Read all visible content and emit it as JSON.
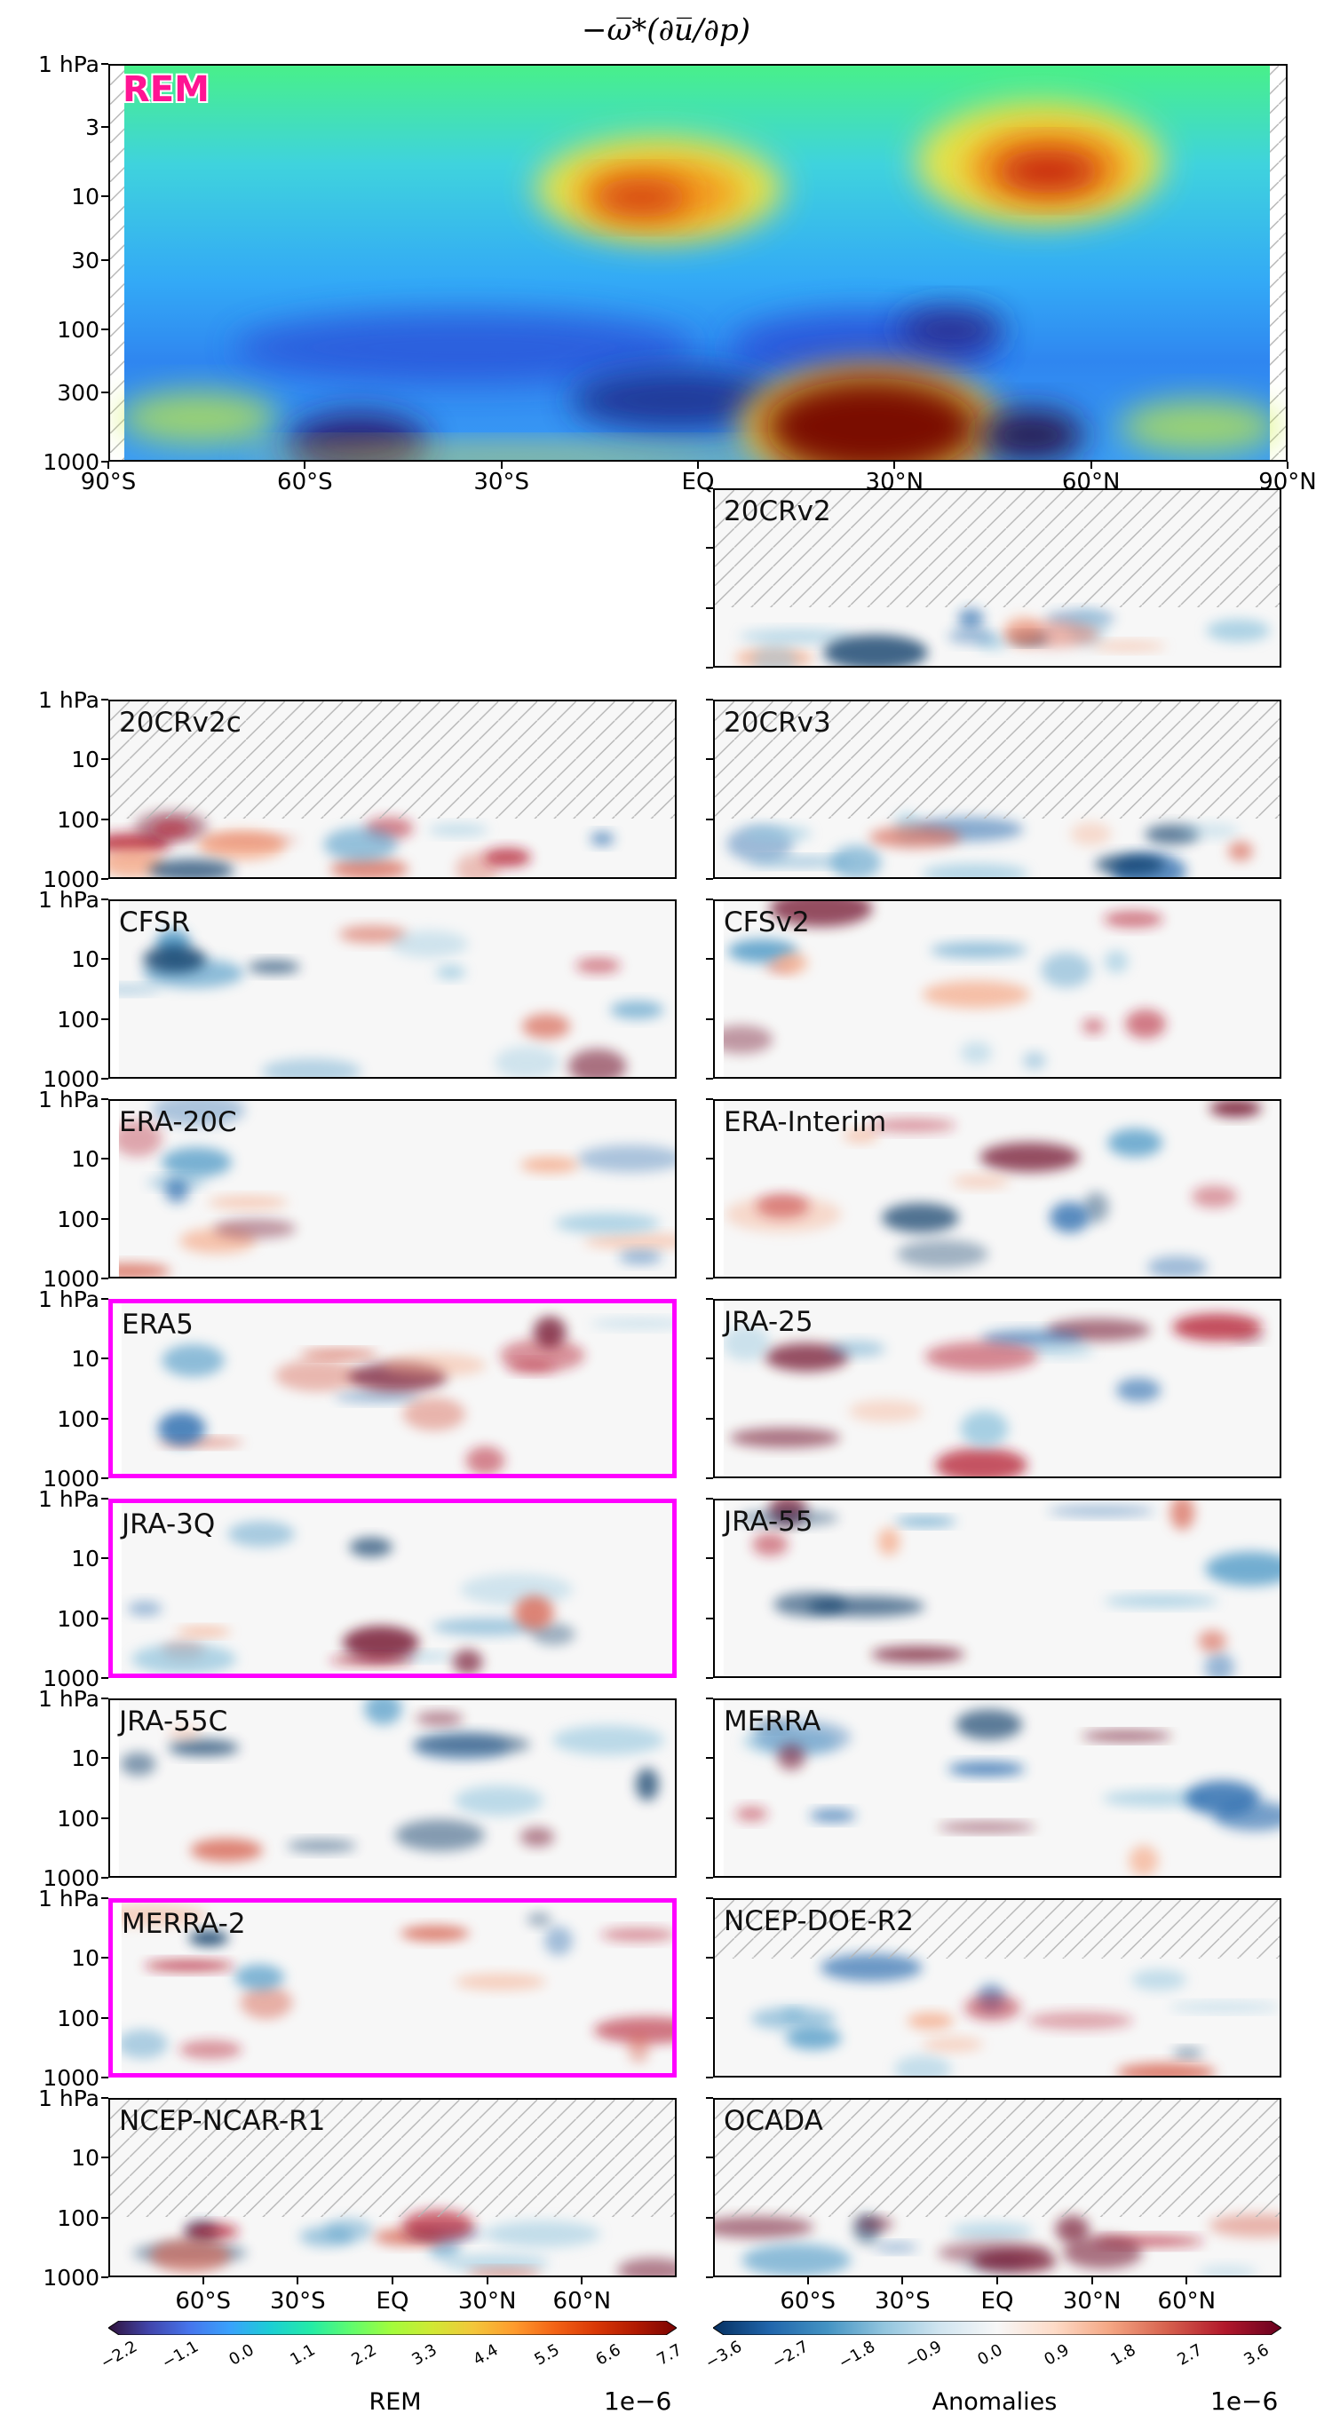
{
  "chart_data": {
    "type": "heatmap",
    "title": "−ω̅*(∂u̅/∂p)",
    "x_axis": {
      "range": [
        "90°S",
        "90°N"
      ],
      "top_panel_tick_labels": [
        "90°S",
        "60°S",
        "30°S",
        "EQ",
        "30°N",
        "60°N",
        "90°N"
      ],
      "bottom_panel_tick_labels": [
        "60°S",
        "30°S",
        "EQ",
        "30°N",
        "60°N"
      ]
    },
    "y_axis": {
      "scale": "log",
      "inverted": true,
      "range_hPa": [
        1,
        1000
      ],
      "top_panel_tick_labels": [
        "1 hPa",
        "3",
        "10",
        "30",
        "100",
        "300",
        "1000"
      ],
      "small_panel_tick_labels": [
        "1 hPa",
        "10",
        "100",
        "1000"
      ]
    },
    "panels": [
      {
        "name": "REM",
        "kind": "rem",
        "highlighted": false,
        "valid_top_hPa": 1
      },
      {
        "name": "20CRv2",
        "kind": "anomaly",
        "highlighted": false,
        "valid_top_hPa": 100
      },
      {
        "name": "20CRv2c",
        "kind": "anomaly",
        "highlighted": false,
        "valid_top_hPa": 100
      },
      {
        "name": "20CRv3",
        "kind": "anomaly",
        "highlighted": false,
        "valid_top_hPa": 100
      },
      {
        "name": "CFSR",
        "kind": "anomaly",
        "highlighted": false,
        "valid_top_hPa": 1
      },
      {
        "name": "CFSv2",
        "kind": "anomaly",
        "highlighted": false,
        "valid_top_hPa": 1
      },
      {
        "name": "ERA-20C",
        "kind": "anomaly",
        "highlighted": false,
        "valid_top_hPa": 1
      },
      {
        "name": "ERA-Interim",
        "kind": "anomaly",
        "highlighted": false,
        "valid_top_hPa": 1
      },
      {
        "name": "ERA5",
        "kind": "anomaly",
        "highlighted": true,
        "valid_top_hPa": 1
      },
      {
        "name": "JRA-25",
        "kind": "anomaly",
        "highlighted": false,
        "valid_top_hPa": 1
      },
      {
        "name": "JRA-3Q",
        "kind": "anomaly",
        "highlighted": true,
        "valid_top_hPa": 1
      },
      {
        "name": "JRA-55",
        "kind": "anomaly",
        "highlighted": false,
        "valid_top_hPa": 1
      },
      {
        "name": "JRA-55C",
        "kind": "anomaly",
        "highlighted": false,
        "valid_top_hPa": 1
      },
      {
        "name": "MERRA",
        "kind": "anomaly",
        "highlighted": false,
        "valid_top_hPa": 1
      },
      {
        "name": "MERRA-2",
        "kind": "anomaly",
        "highlighted": true,
        "valid_top_hPa": 1
      },
      {
        "name": "NCEP-DOE-R2",
        "kind": "anomaly",
        "highlighted": false,
        "valid_top_hPa": 10
      },
      {
        "name": "NCEP-NCAR-R1",
        "kind": "anomaly",
        "highlighted": false,
        "valid_top_hPa": 100
      },
      {
        "name": "OCADA",
        "kind": "anomaly",
        "highlighted": false,
        "valid_top_hPa": 100
      }
    ],
    "colorbars": [
      {
        "label": "REM",
        "colormap": "turbo",
        "ticks": [
          "−2.2",
          "−1.1",
          "0.0",
          "1.1",
          "2.2",
          "3.3",
          "4.4",
          "5.5",
          "6.6",
          "7.7"
        ],
        "multiplier": "1e−6"
      },
      {
        "label": "Anomalies",
        "colormap": "RdBu_r",
        "ticks": [
          "−3.6",
          "−2.7",
          "−1.8",
          "−0.9",
          "0.0",
          "0.9",
          "1.8",
          "2.7",
          "3.6"
        ],
        "multiplier": "1e−6"
      }
    ]
  },
  "colors": {
    "highlight": "#ff00ff",
    "rem_label": "#ff1493"
  }
}
